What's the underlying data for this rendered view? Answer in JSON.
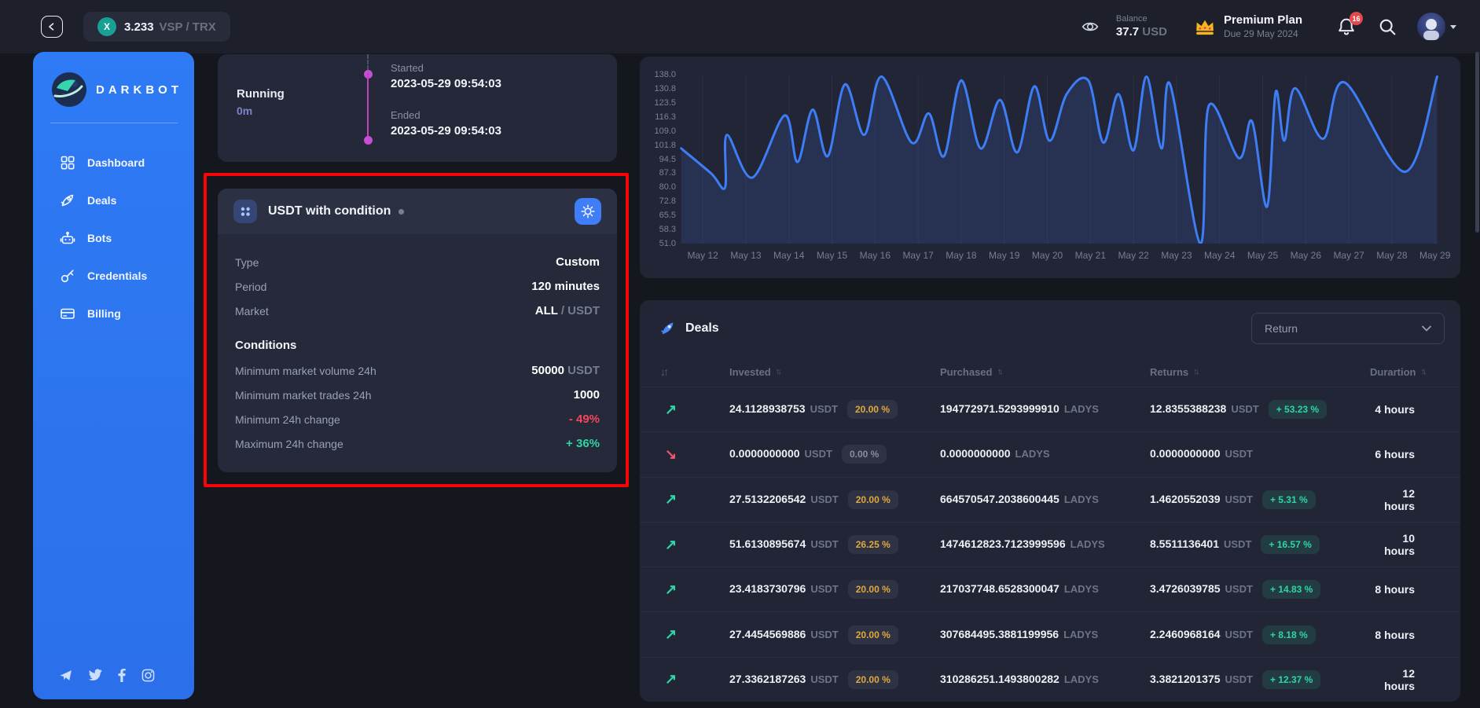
{
  "colors": {
    "accent_blue": "#3f7ef8",
    "sidebar_blue": "#2e7bf5",
    "teal": "#2fd5a5",
    "red": "#f4475f",
    "amber": "#dfa93d",
    "magenta": "#c44fd6",
    "highlight_red": "#f70406",
    "line_blue": "#3d7ef7"
  },
  "header": {
    "pair": {
      "symbol": "X",
      "price": "3.233",
      "name": "VSP / TRX"
    },
    "balance": {
      "label": "Balance",
      "value": "37.7",
      "currency": "USD"
    },
    "plan": {
      "title": "Premium Plan",
      "due": "Due 29 May 2024"
    },
    "notifications": "16"
  },
  "sidebar": {
    "brand": "DARKBOT",
    "items": [
      {
        "label": "Dashboard",
        "icon": "dashboard-icon"
      },
      {
        "label": "Deals",
        "icon": "rocket-icon"
      },
      {
        "label": "Bots",
        "icon": "robot-icon"
      },
      {
        "label": "Credentials",
        "icon": "key-icon"
      },
      {
        "label": "Billing",
        "icon": "billing-card-icon"
      }
    ],
    "socials": [
      "telegram",
      "twitter",
      "facebook",
      "instagram"
    ]
  },
  "run_card": {
    "running_label": "Running",
    "elapsed": "0m",
    "started_label": "Started",
    "started": "2023-05-29 09:54:03",
    "ended_label": "Ended",
    "ended": "2023-05-29 09:54:03"
  },
  "bot_card": {
    "title": "USDT with condition",
    "info_rows": [
      {
        "label": "Type",
        "value": "Custom"
      },
      {
        "label": "Period",
        "value": "120 minutes"
      },
      {
        "label": "Market",
        "value": "ALL",
        "suffix": " / USDT"
      }
    ],
    "conditions_title": "Conditions",
    "condition_rows": [
      {
        "label": "Minimum market volume 24h",
        "value": "50000",
        "suffix": " USDT"
      },
      {
        "label": "Minimum market trades 24h",
        "value": "1000"
      },
      {
        "label": "Minimum 24h change",
        "value": "- 49%",
        "color": "red"
      },
      {
        "label": "Maximum 24h change",
        "value": "+ 36%",
        "color": "teal"
      }
    ]
  },
  "chart_data": {
    "type": "area",
    "title": "",
    "xlabel": "",
    "ylabel": "",
    "grid": "vertical",
    "ylim": [
      51.0,
      138.0
    ],
    "y_ticks": [
      "138.0",
      "130.8",
      "123.5",
      "116.3",
      "109.0",
      "101.8",
      "94.5",
      "87.3",
      "80.0",
      "72.8",
      "65.5",
      "58.3",
      "51.0"
    ],
    "x_ticks": [
      "May 12",
      "May 13",
      "May 14",
      "May 15",
      "May 16",
      "May 17",
      "May 18",
      "May 19",
      "May 20",
      "May 21",
      "May 22",
      "May 23",
      "May 24",
      "May 25",
      "May 26",
      "May 27",
      "May 28",
      "May 29"
    ],
    "series": [
      {
        "name": "price",
        "x": [
          -0.5,
          0.2,
          0.52,
          0.56,
          1.15,
          1.9,
          2.2,
          2.55,
          2.9,
          3.3,
          3.75,
          4.15,
          4.85,
          5.25,
          5.6,
          6.0,
          6.45,
          6.9,
          7.3,
          7.7,
          8.05,
          8.45,
          8.95,
          9.3,
          9.65,
          10.0,
          10.3,
          10.65,
          10.85,
          11.55,
          11.75,
          12.45,
          12.75,
          13.1,
          13.3,
          13.5,
          13.75,
          14.4,
          14.9,
          16.3,
          17.05
        ],
        "y": [
          100,
          87,
          80,
          107,
          85,
          117,
          93,
          120,
          96,
          133,
          107,
          137,
          103,
          118,
          96,
          135,
          100,
          125,
          98,
          132,
          104,
          128,
          135,
          103,
          128,
          99,
          137,
          100,
          133,
          51,
          122,
          95,
          114,
          70,
          129,
          104,
          131,
          105,
          134,
          88,
          137
        ]
      }
    ]
  },
  "deals": {
    "title": "Deals",
    "filter_value": "Return",
    "columns": [
      "Invested",
      "Purchased",
      "Returns",
      "Durartion"
    ],
    "rows": [
      {
        "direction": "up",
        "invested": "24.1128938753",
        "invested_unit": "USDT",
        "fee": "20.00 %",
        "fee_style": "amber",
        "purchased": "194772971.5293999910",
        "purchased_unit": "LADYS",
        "returns": "12.8355388238",
        "returns_unit": "USDT",
        "profit": "+ 53.23 %",
        "duration": "4 hours"
      },
      {
        "direction": "down",
        "invested": "0.0000000000",
        "invested_unit": "USDT",
        "fee": "0.00 %",
        "fee_style": "gray",
        "purchased": "0.0000000000",
        "purchased_unit": "LADYS",
        "returns": "0.0000000000",
        "returns_unit": "USDT",
        "profit": null,
        "duration": "6 hours"
      },
      {
        "direction": "up",
        "invested": "27.5132206542",
        "invested_unit": "USDT",
        "fee": "20.00 %",
        "fee_style": "amber",
        "purchased": "664570547.2038600445",
        "purchased_unit": "LADYS",
        "returns": "1.4620552039",
        "returns_unit": "USDT",
        "profit": "+ 5.31 %",
        "duration": "12 hours"
      },
      {
        "direction": "up",
        "invested": "51.6130895674",
        "invested_unit": "USDT",
        "fee": "26.25 %",
        "fee_style": "amber",
        "purchased": "1474612823.7123999596",
        "purchased_unit": "LADYS",
        "returns": "8.5511136401",
        "returns_unit": "USDT",
        "profit": "+ 16.57 %",
        "duration": "10 hours"
      },
      {
        "direction": "up",
        "invested": "23.4183730796",
        "invested_unit": "USDT",
        "fee": "20.00 %",
        "fee_style": "amber",
        "purchased": "217037748.6528300047",
        "purchased_unit": "LADYS",
        "returns": "3.4726039785",
        "returns_unit": "USDT",
        "profit": "+ 14.83 %",
        "duration": "8 hours"
      },
      {
        "direction": "up",
        "invested": "27.4454569886",
        "invested_unit": "USDT",
        "fee": "20.00 %",
        "fee_style": "amber",
        "purchased": "307684495.3881199956",
        "purchased_unit": "LADYS",
        "returns": "2.2460968164",
        "returns_unit": "USDT",
        "profit": "+ 8.18 %",
        "duration": "8 hours"
      },
      {
        "direction": "up",
        "invested": "27.3362187263",
        "invested_unit": "USDT",
        "fee": "20.00 %",
        "fee_style": "amber",
        "purchased": "310286251.1493800282",
        "purchased_unit": "LADYS",
        "returns": "3.3821201375",
        "returns_unit": "USDT",
        "profit": "+ 12.37 %",
        "duration": "12 hours"
      }
    ]
  }
}
